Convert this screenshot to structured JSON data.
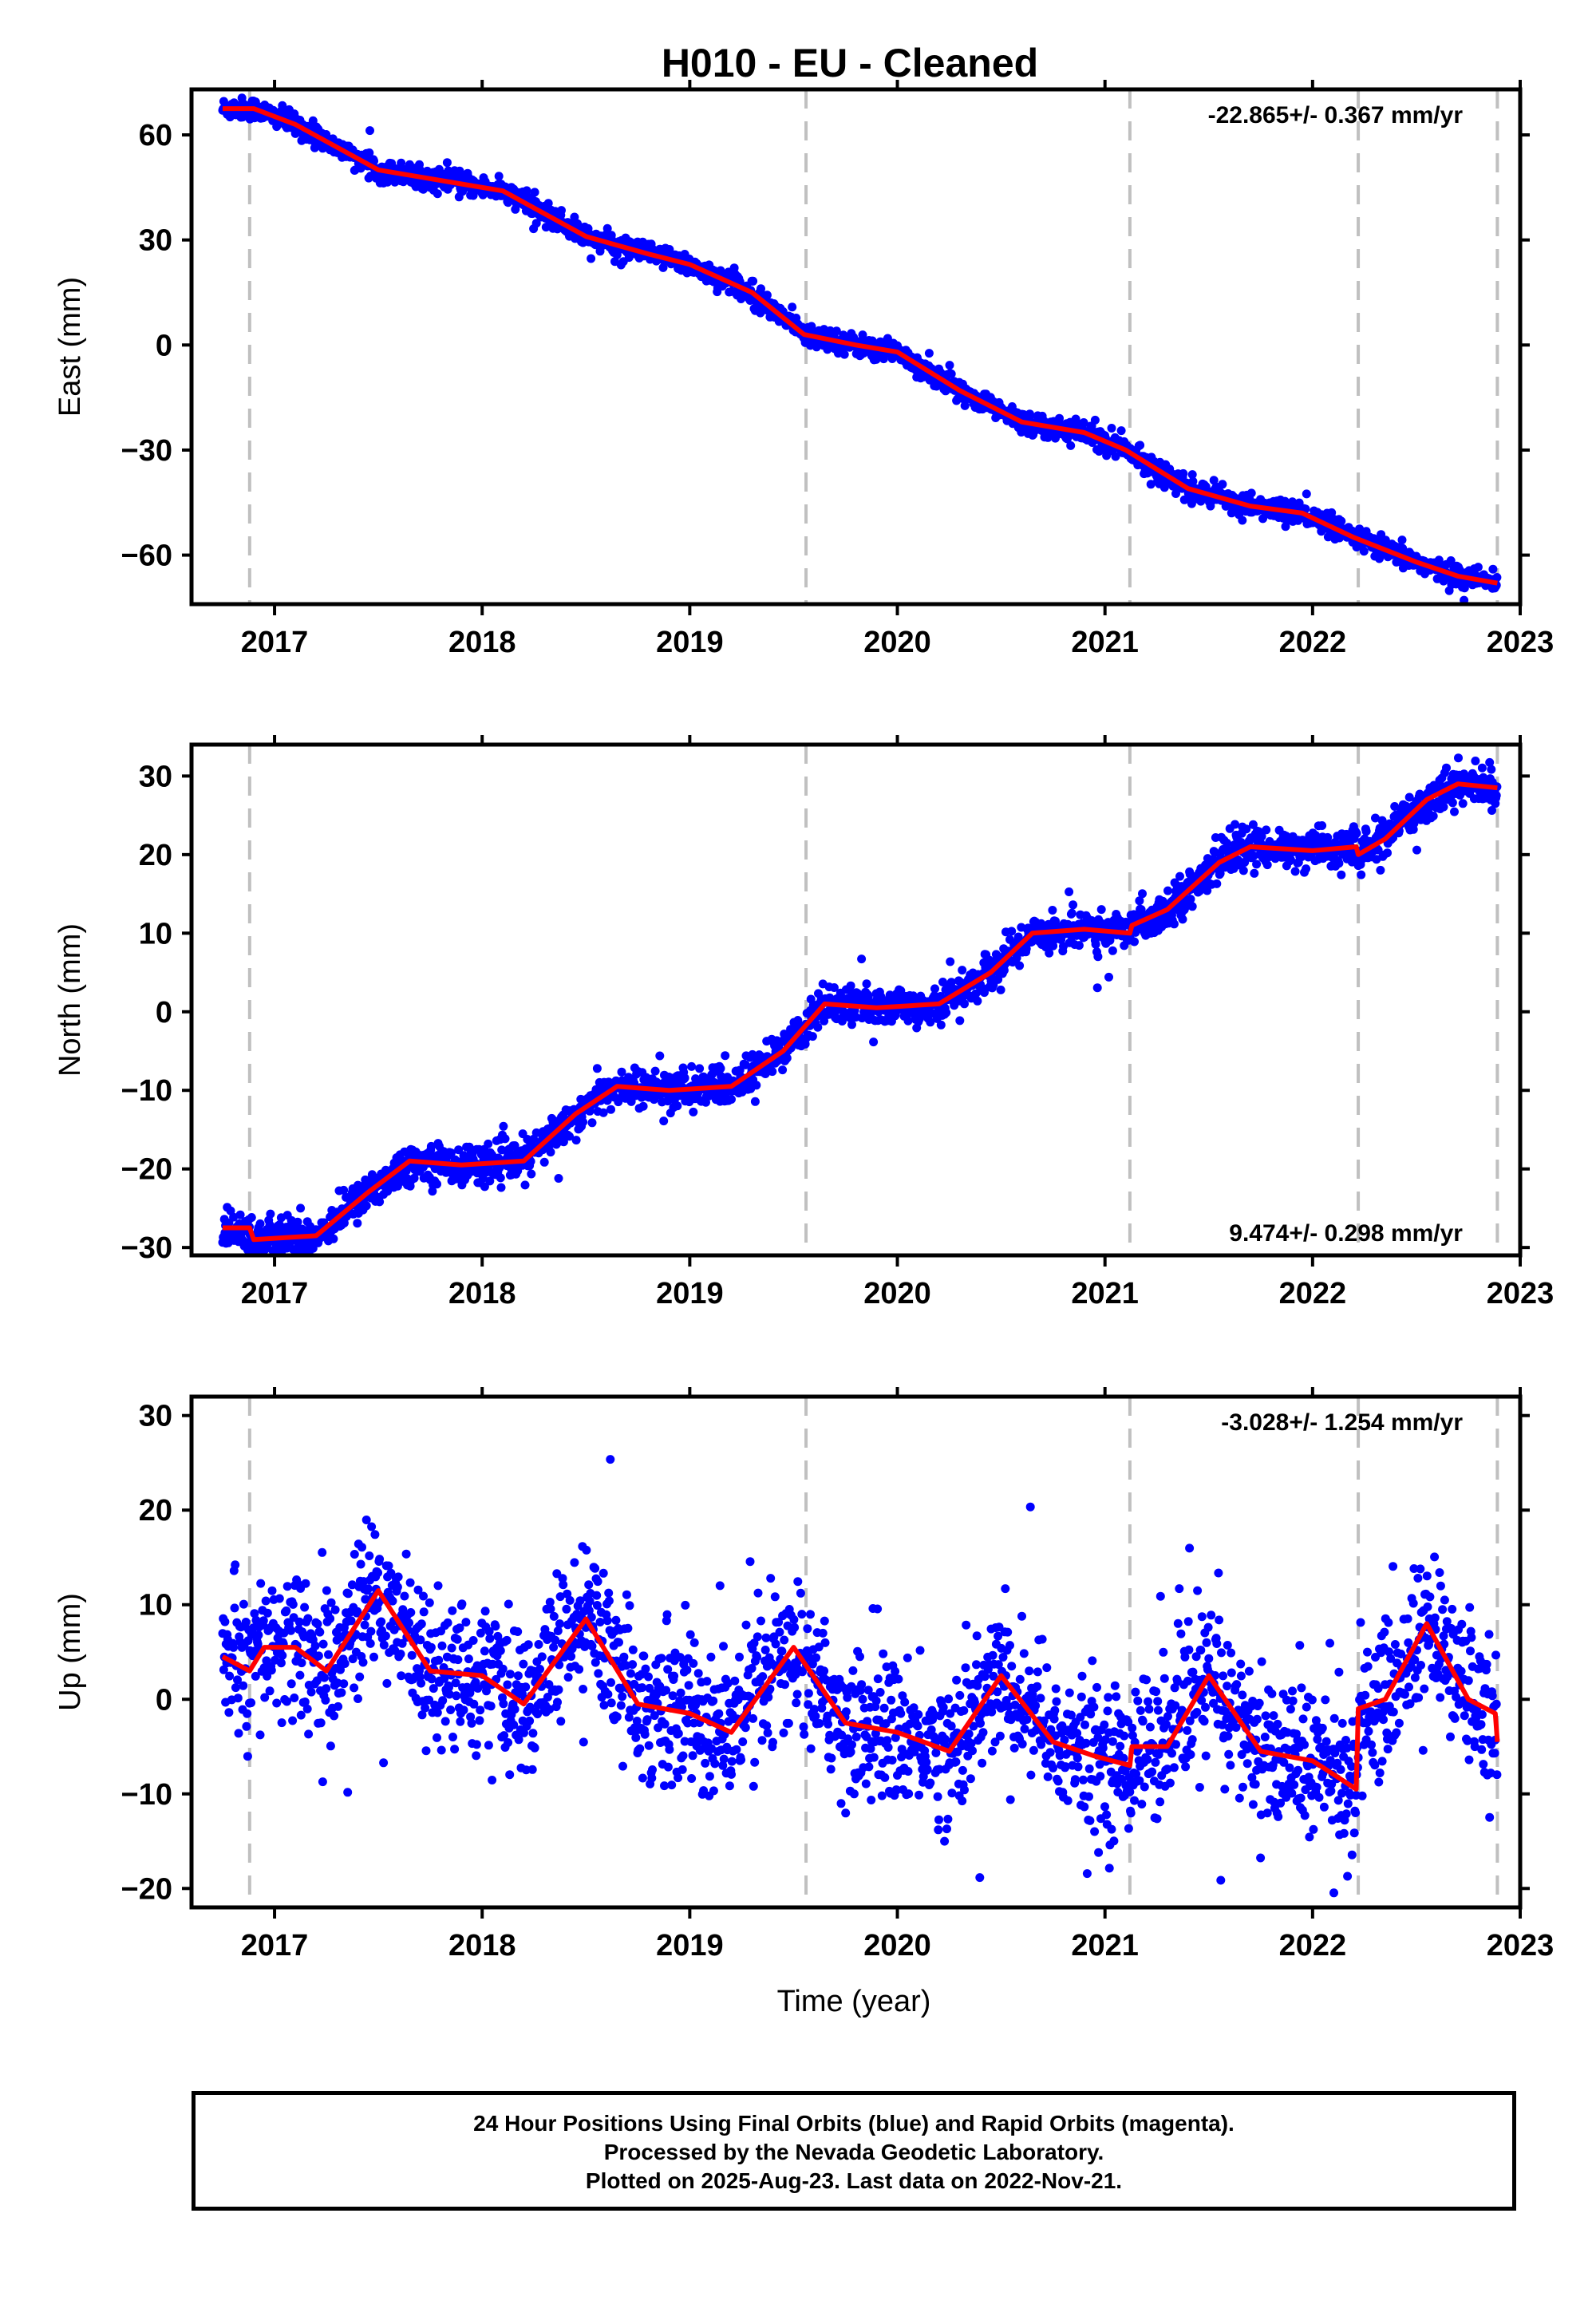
{
  "title": "H010  - EU - Cleaned",
  "xlabel": "Time (year)",
  "footer": {
    "line1": "24 Hour Positions Using Final Orbits (blue) and Rapid Orbits (magenta).",
    "line2": "Processed by the Nevada Geodetic Laboratory.",
    "line3": "Plotted on 2025-Aug-23. Last data on 2022-Nov-21."
  },
  "colors": {
    "points": "#0000ff",
    "model": "#ff0000",
    "vlines": "#c0c0c0",
    "axes": "#000000"
  },
  "chart_data": [
    {
      "type": "scatter",
      "ylabel": "East (mm)",
      "rate": "-22.865+/- 0.367 mm/yr",
      "rate_position": "top-right",
      "xlim": [
        2016.6,
        2023.0
      ],
      "ylim": [
        -74,
        73
      ],
      "xticks": [
        2017,
        2018,
        2019,
        2020,
        2021,
        2022,
        2023
      ],
      "yticks": [
        60,
        30,
        0,
        -30,
        -60
      ],
      "vlines": [
        2016.88,
        2019.56,
        2021.12,
        2022.22,
        2022.89
      ],
      "model": {
        "x": [
          2016.75,
          2016.9,
          2017.1,
          2017.5,
          2017.9,
          2018.1,
          2018.5,
          2018.8,
          2019.0,
          2019.3,
          2019.55,
          2019.8,
          2020.0,
          2020.3,
          2020.6,
          2020.9,
          2021.1,
          2021.4,
          2021.7,
          2021.95,
          2022.2,
          2022.5,
          2022.7,
          2022.89
        ],
        "y": [
          67.5,
          67.5,
          63,
          50,
          46,
          44,
          31,
          26,
          23,
          15,
          3,
          0,
          -2,
          -13,
          -22,
          -25,
          -30,
          -41,
          -46,
          -48,
          -55,
          -62,
          -66,
          -68
        ]
      },
      "noise": 1.5,
      "outlier": 0.01
    },
    {
      "type": "scatter",
      "ylabel": "North (mm)",
      "rate": "9.474+/- 0.298 mm/yr",
      "rate_position": "bottom-right",
      "xlim": [
        2016.6,
        2023.0
      ],
      "ylim": [
        -31,
        34
      ],
      "xticks": [
        2017,
        2018,
        2019,
        2020,
        2021,
        2022,
        2023
      ],
      "yticks": [
        30,
        20,
        10,
        0,
        -10,
        -20,
        -30
      ],
      "vlines": [
        2016.88,
        2019.56,
        2021.12,
        2022.22,
        2022.89
      ],
      "model": {
        "x": [
          2016.75,
          2016.88,
          2016.9,
          2017.2,
          2017.45,
          2017.65,
          2017.9,
          2018.2,
          2018.45,
          2018.65,
          2018.9,
          2019.2,
          2019.45,
          2019.65,
          2019.9,
          2020.2,
          2020.45,
          2020.65,
          2020.9,
          2021.12,
          2021.13,
          2021.3,
          2021.55,
          2021.7,
          2022.0,
          2022.21,
          2022.22,
          2022.35,
          2022.55,
          2022.7,
          2022.89
        ],
        "y": [
          -27.5,
          -27.5,
          -29,
          -28.5,
          -23,
          -19,
          -19.5,
          -19,
          -13,
          -9.5,
          -10,
          -9.5,
          -5,
          1,
          0.5,
          1,
          5,
          10,
          10.5,
          10,
          11,
          13,
          19,
          21,
          20.5,
          21,
          20,
          22,
          27,
          29,
          28.5
        ]
      },
      "noise": 1.2,
      "outlier": 0.01
    },
    {
      "type": "scatter",
      "ylabel": "Up (mm)",
      "rate": "-3.028+/- 1.254 mm/yr",
      "rate_position": "top-right",
      "xlim": [
        2016.6,
        2023.0
      ],
      "ylim": [
        -22,
        32
      ],
      "xticks": [
        2017,
        2018,
        2019,
        2020,
        2021,
        2022,
        2023
      ],
      "yticks": [
        30,
        20,
        10,
        0,
        -10,
        -20
      ],
      "vlines": [
        2016.88,
        2019.56,
        2021.12,
        2022.22,
        2022.89
      ],
      "model": {
        "x": [
          2016.75,
          2016.88,
          2016.95,
          2017.1,
          2017.25,
          2017.5,
          2017.75,
          2018.0,
          2018.2,
          2018.5,
          2018.75,
          2019.0,
          2019.2,
          2019.5,
          2019.75,
          2020.0,
          2020.25,
          2020.5,
          2020.75,
          2020.95,
          2021.12,
          2021.13,
          2021.3,
          2021.5,
          2021.75,
          2022.0,
          2022.21,
          2022.22,
          2022.35,
          2022.55,
          2022.75,
          2022.88,
          2022.89
        ],
        "y": [
          4.5,
          3,
          5.5,
          5.5,
          3,
          11.5,
          3,
          2.5,
          -0.5,
          8.5,
          -0.5,
          -1.5,
          -3.5,
          5.5,
          -2.5,
          -3.5,
          -5.5,
          2.5,
          -4.5,
          -6,
          -7,
          -5,
          -5,
          2.5,
          -5.5,
          -6.5,
          -9.5,
          -1,
          0,
          8,
          0,
          -1.5,
          -4.5
        ]
      },
      "noise": 3.8,
      "outlier": 0.04
    }
  ]
}
